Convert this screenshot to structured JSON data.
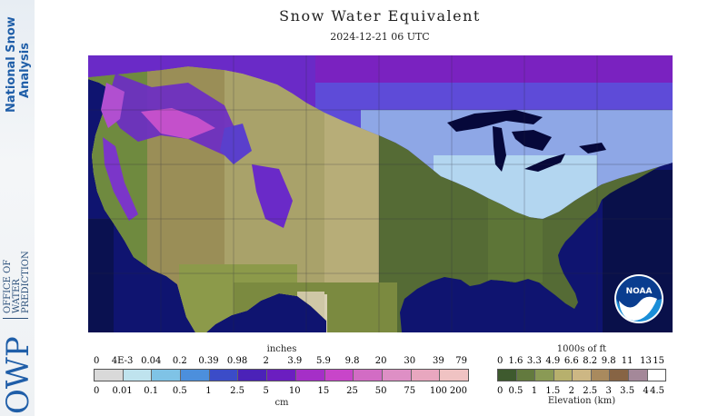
{
  "branding": {
    "nsa_line1": "National Snow",
    "nsa_line2": "Analysis",
    "owp_abbrev": "OWP",
    "owp_line1": "OFFICE OF",
    "owp_line2": "WATER",
    "owp_line3": "PREDICTION",
    "noaa_label": "NOAA"
  },
  "header": {
    "title": "Snow Water Equivalent",
    "subtitle": "2024-12-21 06 UTC"
  },
  "swe_legend": {
    "unit_top": "inches",
    "unit_bottom": "cm",
    "top_ticks": [
      "0",
      "4E-3",
      "0.04",
      "0.2",
      "0.39",
      "0.98",
      "2",
      "3.9",
      "5.9",
      "9.8",
      "20",
      "30",
      "39",
      "79"
    ],
    "bottom_ticks": [
      "0",
      "0.01",
      "0.1",
      "0.5",
      "1",
      "2.5",
      "5",
      "10",
      "15",
      "25",
      "50",
      "75",
      "100",
      "200"
    ],
    "colors": [
      "#d9d9d9",
      "#bfe3ee",
      "#7fc3e6",
      "#4c8fdc",
      "#3b4cc8",
      "#4b22b8",
      "#6b1ec0",
      "#a52fc7",
      "#c845c9",
      "#d26cc4",
      "#de8fc5",
      "#e8a7bf",
      "#f0c3c3"
    ]
  },
  "elev_legend": {
    "unit_top": "1000s of ft",
    "unit_bottom": "Elevation (km)",
    "top_ticks": [
      "0",
      "1.6",
      "3.3",
      "4.9",
      "6.6",
      "8.2",
      "9.8",
      "11",
      "13",
      "15"
    ],
    "bottom_ticks": [
      "0",
      "0.5",
      "1",
      "1.5",
      "2",
      "2.5",
      "3",
      "3.5",
      "4",
      "4.5"
    ],
    "colors": [
      "#3e5a2e",
      "#637a3e",
      "#8a9a55",
      "#b7b06d",
      "#cdb784",
      "#a98a5e",
      "#876444",
      "#a48899",
      "#ffffff"
    ]
  }
}
